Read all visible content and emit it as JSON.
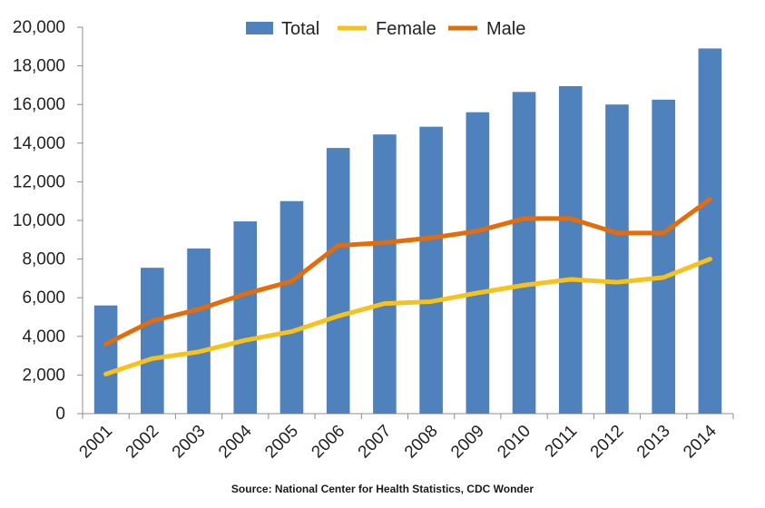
{
  "chart_data": {
    "type": "bar",
    "categories": [
      "2001",
      "2002",
      "2003",
      "2004",
      "2005",
      "2006",
      "2007",
      "2008",
      "2009",
      "2010",
      "2011",
      "2012",
      "2013",
      "2014"
    ],
    "series": [
      {
        "name": "Total",
        "type": "bar",
        "color": "#4f81bd",
        "values": [
          5600,
          7550,
          8550,
          9950,
          11000,
          13750,
          14450,
          14850,
          15600,
          16650,
          16950,
          16000,
          16250,
          18900
        ]
      },
      {
        "name": "Female",
        "type": "line",
        "color": "#f8c21c",
        "values": [
          2050,
          2850,
          3200,
          3800,
          4250,
          5050,
          5700,
          5800,
          6250,
          6650,
          6950,
          6800,
          7050,
          8000
        ]
      },
      {
        "name": "Male",
        "type": "line",
        "color": "#e46c0a",
        "values": [
          3600,
          4800,
          5400,
          6200,
          6850,
          8700,
          8850,
          9100,
          9450,
          10100,
          10100,
          9350,
          9350,
          11100
        ]
      }
    ],
    "ylim": [
      0,
      20000
    ],
    "yticks": [
      "0",
      "2,000",
      "4,000",
      "6,000",
      "8,000",
      "10,000",
      "12,000",
      "14,000",
      "16,000",
      "18,000",
      "20,000"
    ],
    "legend_position": "top",
    "grid": false,
    "source": "Source: National Center for Health Statistics, CDC Wonder"
  }
}
